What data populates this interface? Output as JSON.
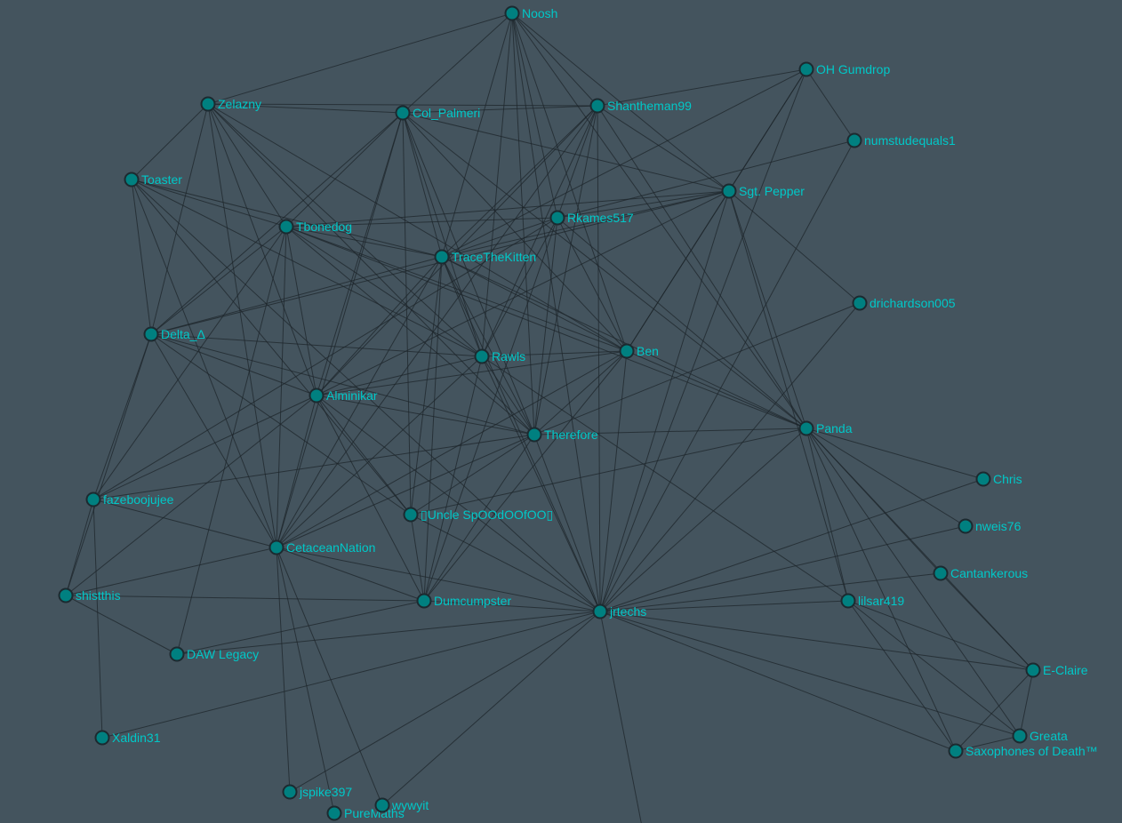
{
  "style": {
    "background": "#44545e",
    "node_fill": "#008080",
    "node_stroke": "#1c2a30",
    "edge_color": "#1e262b",
    "label_color": "#00c8c8"
  },
  "nodes": [
    "Noosh",
    "OH Gumdrop",
    "Zelazny",
    "Col_Palmeri",
    "Shantheman99",
    "numstudequals1",
    "Toaster",
    "Sgt. Pepper",
    "Rkames517",
    "Tbonedog",
    "TraceTheKitten",
    "drichardson005",
    "Delta_Δ",
    "Rawls",
    "Ben",
    "Alminikar",
    "Panda",
    "Therefore",
    "Chris",
    "fazeboojujee",
    "▯Uncle SpOOdOOfOO▯",
    "nweis76",
    "CetaceanNation",
    "Cantankerous",
    "shistthis",
    "Dumcumpster",
    "jrtechs",
    "lilsar419",
    "DAW Legacy",
    "E-Claire",
    "Greata",
    "Saxophones of Death™",
    "Xaldin31",
    "jspike397",
    "PureMaths",
    "wywyit"
  ],
  "edges": [
    [
      "Noosh",
      "Col_Palmeri"
    ],
    [
      "Noosh",
      "Shantheman99"
    ],
    [
      "Noosh",
      "Sgt. Pepper"
    ],
    [
      "Noosh",
      "Zelazny"
    ],
    [
      "Noosh",
      "TraceTheKitten"
    ],
    [
      "Noosh",
      "Rawls"
    ],
    [
      "Noosh",
      "Therefore"
    ],
    [
      "Noosh",
      "Rkames517"
    ],
    [
      "Noosh",
      "Panda"
    ],
    [
      "Noosh",
      "jrtechs"
    ],
    [
      "Noosh",
      "Ben"
    ],
    [
      "OH Gumdrop",
      "Shantheman99"
    ],
    [
      "OH Gumdrop",
      "numstudequals1"
    ],
    [
      "OH Gumdrop",
      "Sgt. Pepper"
    ],
    [
      "OH Gumdrop",
      "Ben"
    ],
    [
      "OH Gumdrop",
      "TraceTheKitten"
    ],
    [
      "OH Gumdrop",
      "jrtechs"
    ],
    [
      "numstudequals1",
      "Rkames517"
    ],
    [
      "numstudequals1",
      "jrtechs"
    ],
    [
      "Zelazny",
      "Col_Palmeri"
    ],
    [
      "Zelazny",
      "Shantheman99"
    ],
    [
      "Zelazny",
      "Toaster"
    ],
    [
      "Zelazny",
      "Delta_Δ"
    ],
    [
      "Zelazny",
      "Tbonedog"
    ],
    [
      "Zelazny",
      "Rawls"
    ],
    [
      "Zelazny",
      "Alminikar"
    ],
    [
      "Zelazny",
      "CetaceanNation"
    ],
    [
      "Zelazny",
      "Ben"
    ],
    [
      "Zelazny",
      "Therefore"
    ],
    [
      "Col_Palmeri",
      "Shantheman99"
    ],
    [
      "Col_Palmeri",
      "Sgt. Pepper"
    ],
    [
      "Col_Palmeri",
      "Tbonedog"
    ],
    [
      "Col_Palmeri",
      "Alminikar"
    ],
    [
      "Col_Palmeri",
      "Delta_Δ"
    ],
    [
      "Col_Palmeri",
      "Rawls"
    ],
    [
      "Col_Palmeri",
      "Ben"
    ],
    [
      "Col_Palmeri",
      "Panda"
    ],
    [
      "Col_Palmeri",
      "Therefore"
    ],
    [
      "Col_Palmeri",
      "▯Uncle SpOOdOOfOO▯"
    ],
    [
      "Col_Palmeri",
      "TraceTheKitten"
    ],
    [
      "Col_Palmeri",
      "CetaceanNation"
    ],
    [
      "Shantheman99",
      "Sgt. Pepper"
    ],
    [
      "Shantheman99",
      "Rkames517"
    ],
    [
      "Shantheman99",
      "TraceTheKitten"
    ],
    [
      "Shantheman99",
      "Rawls"
    ],
    [
      "Shantheman99",
      "Panda"
    ],
    [
      "Shantheman99",
      "jrtechs"
    ],
    [
      "Shantheman99",
      "Therefore"
    ],
    [
      "Shantheman99",
      "CetaceanNation"
    ],
    [
      "Shantheman99",
      "Alminikar"
    ],
    [
      "Toaster",
      "Tbonedog"
    ],
    [
      "Toaster",
      "TraceTheKitten"
    ],
    [
      "Toaster",
      "Delta_Δ"
    ],
    [
      "Toaster",
      "CetaceanNation"
    ],
    [
      "Toaster",
      "Rawls"
    ],
    [
      "Toaster",
      "▯Uncle SpOOdOOfOO▯"
    ],
    [
      "Toaster",
      "jrtechs"
    ],
    [
      "Sgt. Pepper",
      "Rkames517"
    ],
    [
      "Sgt. Pepper",
      "TraceTheKitten"
    ],
    [
      "Sgt. Pepper",
      "Tbonedog"
    ],
    [
      "Sgt. Pepper",
      "drichardson005"
    ],
    [
      "Sgt. Pepper",
      "Panda"
    ],
    [
      "Sgt. Pepper",
      "lilsar419"
    ],
    [
      "Sgt. Pepper",
      "Ben"
    ],
    [
      "Sgt. Pepper",
      "jrtechs"
    ],
    [
      "Sgt. Pepper",
      "Alminikar"
    ],
    [
      "Sgt. Pepper",
      "Delta_Δ"
    ],
    [
      "Rkames517",
      "Tbonedog"
    ],
    [
      "Rkames517",
      "TraceTheKitten"
    ],
    [
      "Rkames517",
      "Therefore"
    ],
    [
      "Rkames517",
      "Dumcumpster"
    ],
    [
      "Rkames517",
      "Rawls"
    ],
    [
      "Rkames517",
      "Panda"
    ],
    [
      "Rkames517",
      "Ben"
    ],
    [
      "Rkames517",
      "fazeboojujee"
    ],
    [
      "Tbonedog",
      "TraceTheKitten"
    ],
    [
      "Tbonedog",
      "Rawls"
    ],
    [
      "Tbonedog",
      "Alminikar"
    ],
    [
      "Tbonedog",
      "Ben"
    ],
    [
      "Tbonedog",
      "Delta_Δ"
    ],
    [
      "Tbonedog",
      "CetaceanNation"
    ],
    [
      "Tbonedog",
      "DAW Legacy"
    ],
    [
      "Tbonedog",
      "Therefore"
    ],
    [
      "Tbonedog",
      "Panda"
    ],
    [
      "Tbonedog",
      "fazeboojujee"
    ],
    [
      "TraceTheKitten",
      "Delta_Δ"
    ],
    [
      "TraceTheKitten",
      "Rawls"
    ],
    [
      "TraceTheKitten",
      "Ben"
    ],
    [
      "TraceTheKitten",
      "Alminikar"
    ],
    [
      "TraceTheKitten",
      "CetaceanNation"
    ],
    [
      "TraceTheKitten",
      "▯Uncle SpOOdOOfOO▯"
    ],
    [
      "TraceTheKitten",
      "Therefore"
    ],
    [
      "TraceTheKitten",
      "Dumcumpster"
    ],
    [
      "TraceTheKitten",
      "jrtechs"
    ],
    [
      "TraceTheKitten",
      "Panda"
    ],
    [
      "drichardson005",
      "Therefore"
    ],
    [
      "drichardson005",
      "jrtechs"
    ],
    [
      "Delta_Δ",
      "Rawls"
    ],
    [
      "Delta_Δ",
      "Alminikar"
    ],
    [
      "Delta_Δ",
      "fazeboojujee"
    ],
    [
      "Delta_Δ",
      "shistthis"
    ],
    [
      "Delta_Δ",
      "CetaceanNation"
    ],
    [
      "Delta_Δ",
      "Therefore"
    ],
    [
      "Delta_Δ",
      "▯Uncle SpOOdOOfOO▯"
    ],
    [
      "Rawls",
      "Ben"
    ],
    [
      "Rawls",
      "Alminikar"
    ],
    [
      "Rawls",
      "Therefore"
    ],
    [
      "Rawls",
      "Dumcumpster"
    ],
    [
      "Rawls",
      "jrtechs"
    ],
    [
      "Rawls",
      "lilsar419"
    ],
    [
      "Rawls",
      "CetaceanNation"
    ],
    [
      "Ben",
      "Panda"
    ],
    [
      "Ben",
      "Alminikar"
    ],
    [
      "Ben",
      "Therefore"
    ],
    [
      "Ben",
      "Dumcumpster"
    ],
    [
      "Ben",
      "jrtechs"
    ],
    [
      "Ben",
      "CetaceanNation"
    ],
    [
      "Alminikar",
      "Therefore"
    ],
    [
      "Alminikar",
      "CetaceanNation"
    ],
    [
      "Alminikar",
      "Dumcumpster"
    ],
    [
      "Alminikar",
      "▯Uncle SpOOdOOfOO▯"
    ],
    [
      "Alminikar",
      "jrtechs"
    ],
    [
      "Alminikar",
      "fazeboojujee"
    ],
    [
      "Alminikar",
      "shistthis"
    ],
    [
      "Panda",
      "Therefore"
    ],
    [
      "Panda",
      "Chris"
    ],
    [
      "Panda",
      "nweis76"
    ],
    [
      "Panda",
      "Cantankerous"
    ],
    [
      "Panda",
      "lilsar419"
    ],
    [
      "Panda",
      "E-Claire"
    ],
    [
      "Panda",
      "Greata"
    ],
    [
      "Panda",
      "Saxophones of Death™"
    ],
    [
      "Panda",
      "▯Uncle SpOOdOOfOO▯"
    ],
    [
      "Panda",
      "jrtechs"
    ],
    [
      "Therefore",
      "fazeboojujee"
    ],
    [
      "Therefore",
      "CetaceanNation"
    ],
    [
      "Therefore",
      "Dumcumpster"
    ],
    [
      "Therefore",
      "jrtechs"
    ],
    [
      "Therefore",
      "▯Uncle SpOOdOOfOO▯"
    ],
    [
      "Chris",
      "jrtechs"
    ],
    [
      "nweis76",
      "jrtechs"
    ],
    [
      "Cantankerous",
      "jrtechs"
    ],
    [
      "Cantankerous",
      "E-Claire"
    ],
    [
      "lilsar419",
      "jrtechs"
    ],
    [
      "lilsar419",
      "E-Claire"
    ],
    [
      "lilsar419",
      "Greata"
    ],
    [
      "lilsar419",
      "Saxophones of Death™"
    ],
    [
      "E-Claire",
      "Greata"
    ],
    [
      "E-Claire",
      "Saxophones of Death™"
    ],
    [
      "E-Claire",
      "jrtechs"
    ],
    [
      "Greata",
      "Saxophones of Death™"
    ],
    [
      "Greata",
      "jrtechs"
    ],
    [
      "Saxophones of Death™",
      "jrtechs"
    ],
    [
      "fazeboojujee",
      "shistthis"
    ],
    [
      "fazeboojujee",
      "CetaceanNation"
    ],
    [
      "fazeboojujee",
      "Xaldin31"
    ],
    [
      "▯Uncle SpOOdOOfOO▯",
      "jrtechs"
    ],
    [
      "▯Uncle SpOOdOOfOO▯",
      "Dumcumpster"
    ],
    [
      "CetaceanNation",
      "shistthis"
    ],
    [
      "CetaceanNation",
      "Dumcumpster"
    ],
    [
      "CetaceanNation",
      "jrtechs"
    ],
    [
      "CetaceanNation",
      "jspike397"
    ],
    [
      "CetaceanNation",
      "PureMaths"
    ],
    [
      "CetaceanNation",
      "wywyit"
    ],
    [
      "shistthis",
      "Dumcumpster"
    ],
    [
      "shistthis",
      "DAW Legacy"
    ],
    [
      "Dumcumpster",
      "DAW Legacy"
    ],
    [
      "Dumcumpster",
      "jrtechs"
    ],
    [
      "DAW Legacy",
      "jrtechs"
    ],
    [
      "Xaldin31",
      "jrtechs"
    ],
    [
      "jspike397",
      "jrtechs"
    ],
    [
      "wywyit",
      "jrtechs"
    ]
  ]
}
